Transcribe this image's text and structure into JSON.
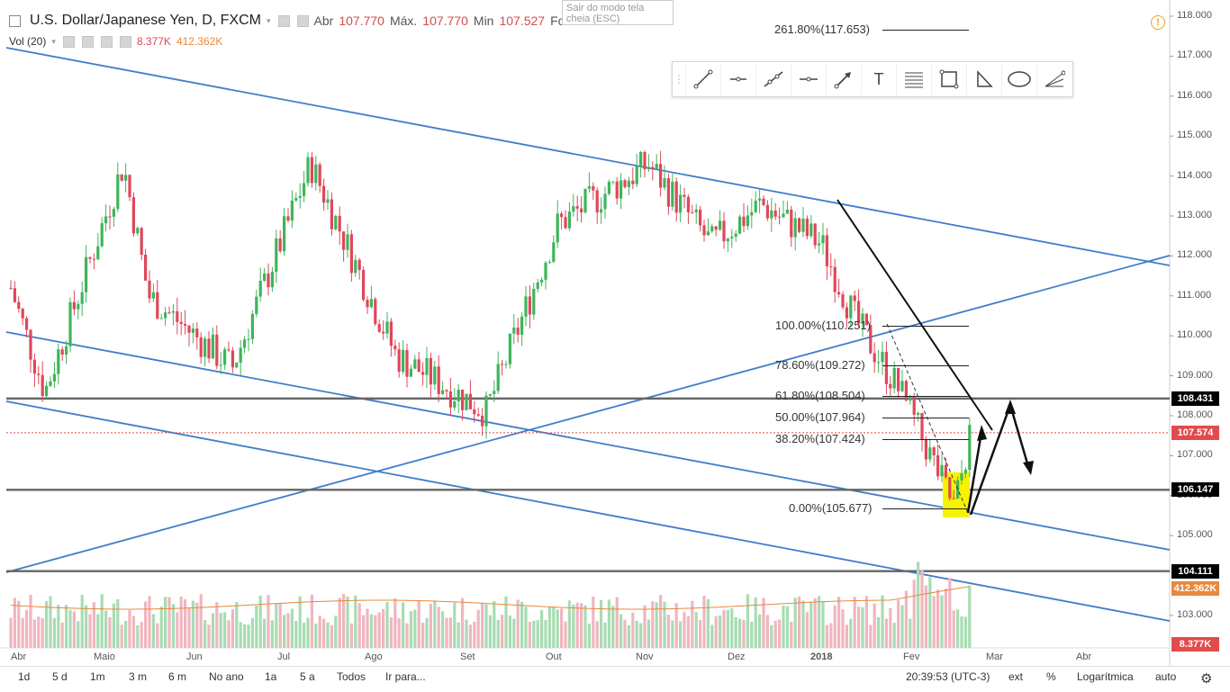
{
  "header": {
    "symbol": "U.S. Dollar/Japanese Yen, D, FXCM",
    "open_label": "Abr",
    "open_value": "107.770",
    "high_label": "Máx.",
    "high_value": "107.770",
    "low_label": "Min",
    "low_value": "107.527",
    "close_label": "Fch",
    "close_value": "107.574",
    "volume_label": "Vol (20)",
    "volume_value": "8.377K",
    "volume_ma_value": "412.362K"
  },
  "tooltip": {
    "text": "Sair do modo tela cheia (ESC)"
  },
  "toolbar": {
    "icons": [
      "trend-line-icon",
      "horizontal-ray-icon",
      "extended-line-icon",
      "horizontal-line-icon",
      "arrow-icon",
      "text-icon",
      "fib-retracement-icon",
      "rectangle-icon",
      "triangle-icon",
      "ellipse-icon",
      "pitchfork-icon"
    ],
    "text_glyph": "T"
  },
  "price_tags": [
    {
      "value": "108.431",
      "color": "#000000"
    },
    {
      "value": "107.574",
      "color": "#e04b4b"
    },
    {
      "value": "106.147",
      "color": "#000000"
    },
    {
      "value": "104.111",
      "color": "#000000"
    },
    {
      "value": "412.362K",
      "color": "#e8883d"
    },
    {
      "value": "8.377K",
      "color": "#e04b4b"
    }
  ],
  "fibonacci": [
    {
      "label": "261.80%(117.653)",
      "level": 117.653
    },
    {
      "label": "100.00%(110.251)",
      "level": 110.251
    },
    {
      "label": "78.60%(109.272)",
      "level": 109.272
    },
    {
      "label": "61.80%(108.504)",
      "level": 108.504
    },
    {
      "label": "50.00%(107.964)",
      "level": 107.964
    },
    {
      "label": "38.20%(107.424)",
      "level": 107.424
    },
    {
      "label": "0.00%(105.677)",
      "level": 105.677
    }
  ],
  "horizontal_levels": [
    108.431,
    106.147,
    104.111
  ],
  "chart_data": {
    "type": "candlestick",
    "title": "U.S. Dollar/Japanese Yen, D, FXCM",
    "y_axis": {
      "ticks": [
        "118.000",
        "117.000",
        "116.000",
        "115.000",
        "114.000",
        "113.000",
        "112.000",
        "111.000",
        "110.000",
        "109.000",
        "108.000",
        "107.000",
        "106.000",
        "105.000",
        "103.000"
      ],
      "ylim": [
        102.6,
        118.2
      ]
    },
    "x_axis": {
      "ticks": [
        "Abr",
        "Maio",
        "Jun",
        "Jul",
        "Ago",
        "Set",
        "Out",
        "Nov",
        "Dez",
        "2018",
        "Fev",
        "Mar",
        "Abr"
      ]
    },
    "monthly_path": [
      {
        "month": "Abr",
        "price": 111.2
      },
      {
        "month": "Abr",
        "price": 108.6
      },
      {
        "month": "Maio",
        "price": 114.3
      },
      {
        "month": "Maio",
        "price": 111.0
      },
      {
        "month": "Jun",
        "price": 109.2
      },
      {
        "month": "Jul",
        "price": 114.3
      },
      {
        "month": "Ago",
        "price": 109.5
      },
      {
        "month": "Set",
        "price": 108.1
      },
      {
        "month": "Out",
        "price": 112.8
      },
      {
        "month": "Nov",
        "price": 114.3
      },
      {
        "month": "Nov",
        "price": 112.3
      },
      {
        "month": "Dez",
        "price": 113.3
      },
      {
        "month": "2018",
        "price": 112.3
      },
      {
        "month": "2018",
        "price": 110.4
      },
      {
        "month": "Fev",
        "price": 108.6
      },
      {
        "month": "Fev",
        "price": 105.7
      },
      {
        "month": "Fev",
        "price": 107.574
      }
    ],
    "last_price": 107.574,
    "volume_ma": "412.362K",
    "last_volume": "8.377K",
    "colors": {
      "up": "#3fb55a",
      "down": "#e0475b",
      "channel": "#3f7dc9",
      "level": "#555555"
    }
  },
  "bottom_bar": {
    "ranges": [
      "1d",
      "5 d",
      "1m",
      "3 m",
      "6 m",
      "No ano",
      "1a",
      "5 a",
      "Todos",
      "Ir para..."
    ],
    "time": "20:39:53 (UTC-3)",
    "toggles": [
      "ext",
      "%",
      "Logarítmica",
      "auto"
    ]
  }
}
